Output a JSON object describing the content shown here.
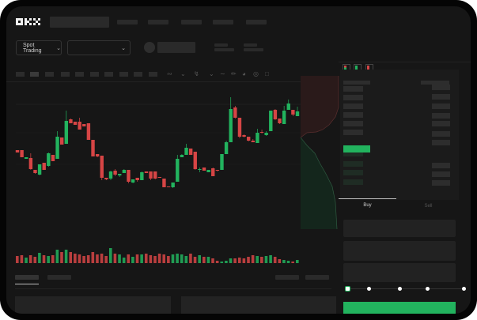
{
  "header": {
    "logo": "OKX"
  },
  "toolbar": {
    "market_select": "Spot Trading"
  },
  "trade": {
    "tabs": [
      {
        "label": "Buy",
        "active": true
      },
      {
        "label": "Sell",
        "active": false
      }
    ],
    "slider_percent": 0,
    "slider_stops": 5
  },
  "colors": {
    "up": "#22b35e",
    "down": "#d64545",
    "background": "#161616",
    "primary_button": "#22b35e"
  },
  "chart_data": {
    "type": "candlestick",
    "candles": [
      {
        "o": 218,
        "c": 215,
        "h": 218,
        "l": 215
      },
      {
        "o": 218,
        "c": 209,
        "h": 218,
        "l": 209
      },
      {
        "o": 207,
        "c": 209,
        "h": 209,
        "l": 207
      },
      {
        "o": 208,
        "c": 194,
        "h": 214,
        "l": 193
      },
      {
        "o": 193,
        "c": 189,
        "h": 193,
        "l": 188
      },
      {
        "o": 187,
        "c": 200,
        "h": 200,
        "l": 186
      },
      {
        "o": 202,
        "c": 193,
        "h": 202,
        "l": 193
      },
      {
        "o": 198,
        "c": 214,
        "h": 215,
        "l": 197
      },
      {
        "o": 212,
        "c": 204,
        "h": 212,
        "l": 204
      },
      {
        "o": 207,
        "c": 235,
        "h": 242,
        "l": 207
      },
      {
        "o": 234,
        "c": 225,
        "h": 234,
        "l": 225
      },
      {
        "o": 226,
        "c": 255,
        "h": 268,
        "l": 226
      },
      {
        "o": 257,
        "c": 252,
        "h": 258,
        "l": 252
      },
      {
        "o": 254,
        "c": 250,
        "h": 254,
        "l": 250
      },
      {
        "o": 254,
        "c": 244,
        "h": 259,
        "l": 244
      },
      {
        "o": 251,
        "c": 248,
        "h": 251,
        "l": 248
      },
      {
        "o": 252,
        "c": 231,
        "h": 252,
        "l": 231
      },
      {
        "o": 231,
        "c": 210,
        "h": 231,
        "l": 210
      },
      {
        "o": 213,
        "c": 210,
        "h": 213,
        "l": 209
      },
      {
        "o": 211,
        "c": 183,
        "h": 211,
        "l": 180
      },
      {
        "o": 183,
        "c": 181,
        "h": 183,
        "l": 180
      },
      {
        "o": 182,
        "c": 191,
        "h": 192,
        "l": 180
      },
      {
        "o": 192,
        "c": 187,
        "h": 194,
        "l": 185
      },
      {
        "o": 186,
        "c": 188,
        "h": 188,
        "l": 184
      },
      {
        "o": 189,
        "c": 193,
        "h": 194,
        "l": 189
      },
      {
        "o": 193,
        "c": 178,
        "h": 193,
        "l": 176
      },
      {
        "o": 177,
        "c": 181,
        "h": 181,
        "l": 176
      },
      {
        "o": 183,
        "c": 180,
        "h": 183,
        "l": 178
      },
      {
        "o": 180,
        "c": 190,
        "h": 191,
        "l": 180
      },
      {
        "o": 191,
        "c": 189,
        "h": 191,
        "l": 189
      },
      {
        "o": 191,
        "c": 182,
        "h": 191,
        "l": 180
      },
      {
        "o": 191,
        "c": 182,
        "h": 191,
        "l": 181
      },
      {
        "o": 184,
        "c": 183,
        "h": 184,
        "l": 183
      },
      {
        "o": 182,
        "c": 171,
        "h": 182,
        "l": 171
      },
      {
        "o": 172,
        "c": 171,
        "h": 172,
        "l": 171
      },
      {
        "o": 171,
        "c": 177,
        "h": 177,
        "l": 170
      },
      {
        "o": 178,
        "c": 207,
        "h": 212,
        "l": 178
      },
      {
        "o": 209,
        "c": 212,
        "h": 213,
        "l": 209
      },
      {
        "o": 212,
        "c": 221,
        "h": 226,
        "l": 212
      },
      {
        "o": 220,
        "c": 212,
        "h": 220,
        "l": 212
      },
      {
        "o": 216,
        "c": 194,
        "h": 216,
        "l": 193
      },
      {
        "o": 193,
        "c": 194,
        "h": 196,
        "l": 190
      },
      {
        "o": 196,
        "c": 192,
        "h": 196,
        "l": 192
      },
      {
        "o": 190,
        "c": 193,
        "h": 193,
        "l": 190
      },
      {
        "o": 195,
        "c": 185,
        "h": 196,
        "l": 185
      },
      {
        "o": 193,
        "c": 192,
        "h": 193,
        "l": 191
      },
      {
        "o": 193,
        "c": 213,
        "h": 213,
        "l": 193
      },
      {
        "o": 213,
        "c": 228,
        "h": 230,
        "l": 213
      },
      {
        "o": 228,
        "c": 270,
        "h": 285,
        "l": 228
      },
      {
        "o": 272,
        "c": 259,
        "h": 274,
        "l": 258
      },
      {
        "o": 259,
        "c": 235,
        "h": 259,
        "l": 233
      },
      {
        "o": 237,
        "c": 235,
        "h": 238,
        "l": 234
      },
      {
        "o": 235,
        "c": 230,
        "h": 235,
        "l": 229
      },
      {
        "o": 230,
        "c": 228,
        "h": 232,
        "l": 228
      },
      {
        "o": 227,
        "c": 240,
        "h": 245,
        "l": 227
      },
      {
        "o": 241,
        "c": 240,
        "h": 244,
        "l": 239
      },
      {
        "o": 237,
        "c": 240,
        "h": 242,
        "l": 236
      },
      {
        "o": 242,
        "c": 268,
        "h": 268,
        "l": 242
      },
      {
        "o": 269,
        "c": 257,
        "h": 270,
        "l": 256
      },
      {
        "o": 258,
        "c": 252,
        "h": 258,
        "l": 251
      },
      {
        "o": 251,
        "c": 268,
        "h": 274,
        "l": 251
      },
      {
        "o": 269,
        "c": 277,
        "h": 282,
        "l": 269
      },
      {
        "o": 269,
        "c": 263,
        "h": 269,
        "l": 261
      },
      {
        "o": 261,
        "c": 267,
        "h": 273,
        "l": 261
      }
    ],
    "volume": [
      9,
      10,
      7,
      10,
      8,
      13,
      10,
      9,
      10,
      17,
      14,
      17,
      14,
      12,
      11,
      9,
      10,
      14,
      11,
      12,
      9,
      19,
      12,
      11,
      7,
      11,
      8,
      11,
      11,
      12,
      10,
      9,
      12,
      11,
      9,
      11,
      12,
      11,
      9,
      12,
      8,
      10,
      8,
      8,
      6,
      3,
      2,
      3,
      6,
      6,
      7,
      6,
      8,
      10,
      9,
      8,
      9,
      10,
      8,
      5,
      4,
      3,
      2,
      4
    ]
  }
}
